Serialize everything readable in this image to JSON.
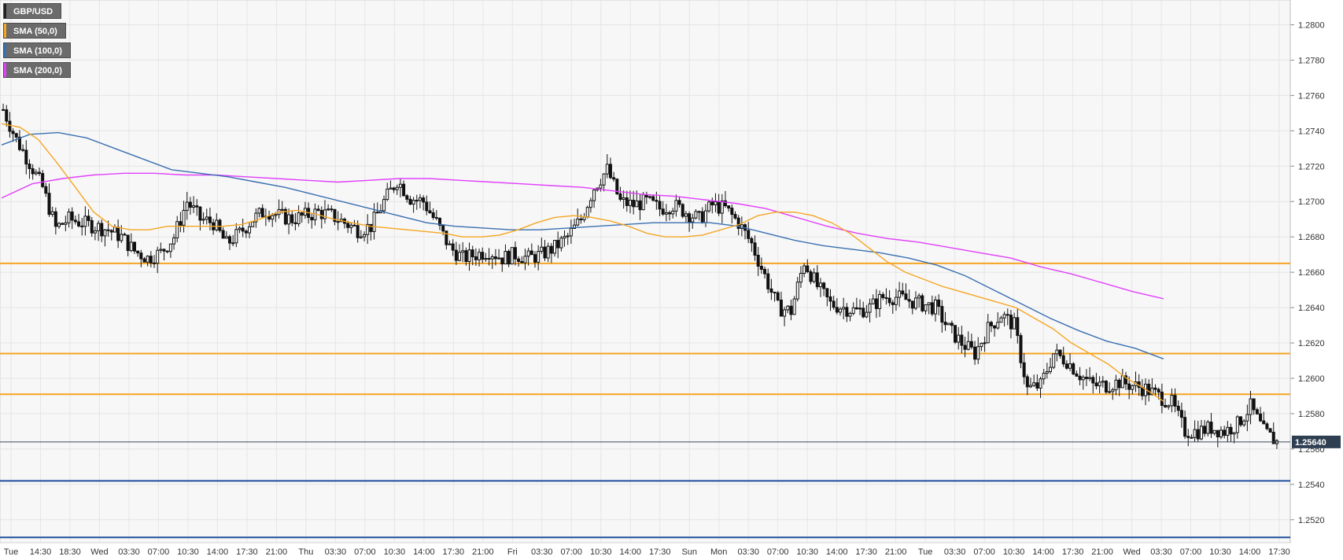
{
  "legend": [
    {
      "label": "GBP/USD",
      "color": "#222222"
    },
    {
      "label": "SMA (50,0)",
      "color": "#f5a623"
    },
    {
      "label": "SMA (100,0)",
      "color": "#3a6fb0"
    },
    {
      "label": "SMA (200,0)",
      "color": "#e040fb"
    }
  ],
  "chart_data": {
    "type": "candlestick",
    "instrument": "GBP/USD",
    "timeframe_labels": [
      "Tue",
      "14:30",
      "18:30",
      "Wed",
      "03:30",
      "07:00",
      "10:30",
      "14:00",
      "17:30",
      "21:00",
      "Thu",
      "03:30",
      "07:00",
      "10:30",
      "14:00",
      "17:30",
      "21:00",
      "Fri",
      "03:30",
      "07:00",
      "10:30",
      "14:00",
      "17:30",
      "Sun",
      "Mon",
      "03:30",
      "07:00",
      "10:30",
      "14:00",
      "17:30",
      "21:00",
      "Tue",
      "03:30",
      "07:00",
      "10:30",
      "14:00",
      "17:30",
      "21:00",
      "Wed",
      "03:30",
      "07:00",
      "10:30",
      "14:00",
      "17:30"
    ],
    "y_ticks": [
      "1.2800",
      "1.2780",
      "1.2760",
      "1.2740",
      "1.2720",
      "1.2700",
      "1.2680",
      "1.2660",
      "1.2640",
      "1.2620",
      "1.2600",
      "1.2580",
      "1.2560",
      "1.2540",
      "1.2520"
    ],
    "ylim": [
      1.2507,
      1.2814
    ],
    "current_price": 1.2564,
    "current_price_label": "1.25640",
    "horizontal_levels": [
      {
        "value": 1.2665,
        "color": "#f5a623"
      },
      {
        "value": 1.2614,
        "color": "#f5a623"
      },
      {
        "value": 1.2591,
        "color": "#f5a623"
      },
      {
        "value": 1.2542,
        "color": "#1f4e9c"
      },
      {
        "value": 1.251,
        "color": "#1f4e9c"
      }
    ],
    "close_series": [
      1.2752,
      1.2735,
      1.2722,
      1.2708,
      1.2685,
      1.269,
      1.2688,
      1.2686,
      1.2684,
      1.268,
      1.2672,
      1.2668,
      1.2671,
      1.268,
      1.27,
      1.269,
      1.2688,
      1.2676,
      1.2682,
      1.269,
      1.2695,
      1.2692,
      1.269,
      1.2692,
      1.2694,
      1.2692,
      1.2688,
      1.2684,
      1.2686,
      1.27,
      1.2712,
      1.2702,
      1.27,
      1.2688,
      1.2674,
      1.2668,
      1.267,
      1.2672,
      1.2668,
      1.267,
      1.2668,
      1.267,
      1.2674,
      1.268,
      1.269,
      1.2708,
      1.2718,
      1.27,
      1.2698,
      1.27,
      1.2696,
      1.2698,
      1.2694,
      1.269,
      1.2698,
      1.2696,
      1.2688,
      1.2676,
      1.2658,
      1.264,
      1.2638,
      1.2666,
      1.2652,
      1.2642,
      1.264,
      1.2638,
      1.264,
      1.2646,
      1.2646,
      1.2644,
      1.2642,
      1.264,
      1.2628,
      1.262,
      1.2614,
      1.2628,
      1.2636,
      1.263,
      1.2594,
      1.2596,
      1.2614,
      1.261,
      1.2602,
      1.2596,
      1.2596,
      1.2598,
      1.2596,
      1.2594,
      1.259,
      1.2586,
      1.257,
      1.257,
      1.2572,
      1.257,
      1.2574,
      1.2584,
      1.257,
      1.2564
    ],
    "sma50": [
      1.2744,
      1.2742,
      1.2735,
      1.2722,
      1.2708,
      1.2694,
      1.2686,
      1.2684,
      1.2684,
      1.2686,
      1.2686,
      1.2686,
      1.2686,
      1.2687,
      1.269,
      1.2694,
      1.2695,
      1.2693,
      1.269,
      1.2688,
      1.2686,
      1.2685,
      1.2684,
      1.2683,
      1.2682,
      1.268,
      1.268,
      1.2681,
      1.2684,
      1.2688,
      1.2691,
      1.2692,
      1.2691,
      1.2689,
      1.2686,
      1.2682,
      1.268,
      1.268,
      1.2681,
      1.2684,
      1.2687,
      1.2692,
      1.2694,
      1.2694,
      1.2692,
      1.2688,
      1.2682,
      1.2674,
      1.2666,
      1.266,
      1.2656,
      1.2652,
      1.2649,
      1.2646,
      1.2643,
      1.264,
      1.2634,
      1.2628,
      1.262,
      1.2614,
      1.2608,
      1.26,
      1.2594,
      1.2587
    ],
    "sma100": [
      1.2732,
      1.2738,
      1.2739,
      1.2736,
      1.273,
      1.2724,
      1.2718,
      1.2716,
      1.2714,
      1.2711,
      1.2708,
      1.2704,
      1.27,
      1.2696,
      1.2692,
      1.2688,
      1.2686,
      1.2685,
      1.2684,
      1.2684,
      1.2685,
      1.2686,
      1.2687,
      1.2688,
      1.2688,
      1.2688,
      1.2686,
      1.2682,
      1.2678,
      1.2675,
      1.2673,
      1.2671,
      1.2668,
      1.2664,
      1.2658,
      1.265,
      1.2642,
      1.2634,
      1.2627,
      1.2621,
      1.2617,
      1.2611
    ],
    "sma200": [
      1.2702,
      1.271,
      1.2713,
      1.2715,
      1.2716,
      1.2716,
      1.2715,
      1.2715,
      1.2714,
      1.2713,
      1.2712,
      1.2711,
      1.2712,
      1.2713,
      1.2713,
      1.2712,
      1.2711,
      1.271,
      1.2709,
      1.2708,
      1.2706,
      1.2704,
      1.2703,
      1.2701,
      1.2699,
      1.2696,
      1.2691,
      1.2686,
      1.2682,
      1.2679,
      1.2677,
      1.2674,
      1.2671,
      1.2668,
      1.2663,
      1.2659,
      1.2654,
      1.2649,
      1.2645
    ]
  }
}
